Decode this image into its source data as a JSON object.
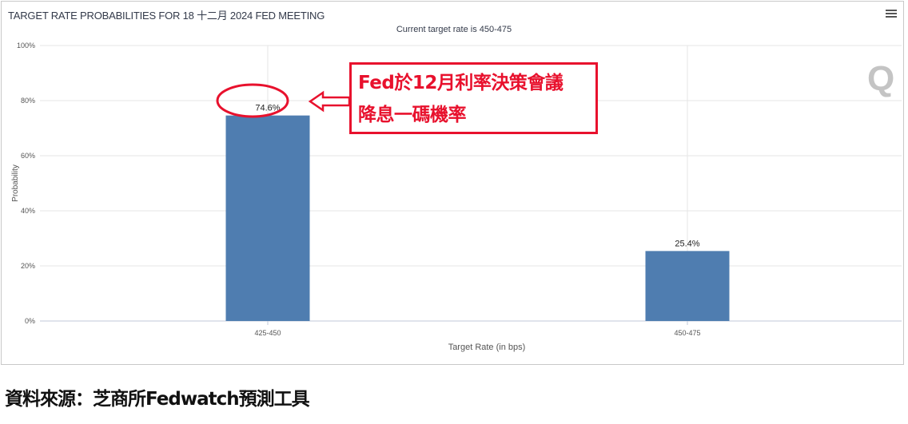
{
  "header": {
    "title": "TARGET RATE PROBABILITIES FOR 18 十二月 2024 FED MEETING",
    "subtitle": "Current target rate is 450-475",
    "menu_icon": "hamburger-menu-icon",
    "watermark": "Q"
  },
  "annotation": {
    "line1": "Fed於12月利率決策會議",
    "line2": "降息一碼機率",
    "color": "#e8112d"
  },
  "footer": {
    "source": "資料來源：芝商所Fedwatch預測工具"
  },
  "chart_data": {
    "type": "bar",
    "title": "TARGET RATE PROBABILITIES FOR 18 十二月 2024 FED MEETING",
    "subtitle": "Current target rate is 450-475",
    "categories": [
      "425-450",
      "450-475"
    ],
    "values": [
      74.6,
      25.4
    ],
    "data_labels": [
      "74.6%",
      "25.4%"
    ],
    "xlabel": "Target Rate (in bps)",
    "ylabel": "Probability",
    "ylim": [
      0,
      100
    ],
    "yticks": [
      "0%",
      "20%",
      "40%",
      "60%",
      "80%",
      "100%"
    ],
    "grid": true,
    "bar_color": "#4f7db0"
  }
}
